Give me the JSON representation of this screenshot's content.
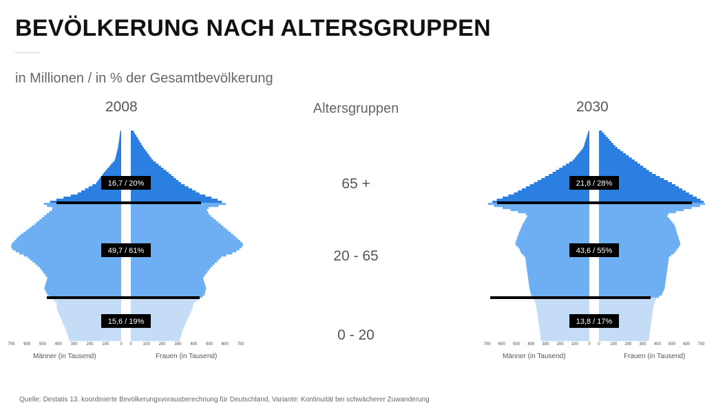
{
  "title": "BEVÖLKERUNG NACH ALTERSGRUPPEN",
  "subtitle": "in Millionen / in % der Gesamtbevölkerung",
  "center_header": "Altersgruppen",
  "source": "Quelle: Destatis 13. koordinierte Bevölkerungsvorausberechnung für Deutschland, Variante: Kontinuität bei schwächerer Zuwanderung",
  "colors": {
    "group_65_plus": "#2b7fe0",
    "group_20_65": "#6eaef2",
    "group_0_20": "#c4dcf5",
    "divider": "#000000",
    "label_bg": "#000000",
    "label_text": "#ffffff"
  },
  "chart_data": [
    {
      "type": "pyramid",
      "title": "2008",
      "unit_axis": "Tausend",
      "xlabel_left": "Männer (in Tausend)",
      "xlabel_right": "Frauen (in Tausend)",
      "xticks": [
        "700",
        "600",
        "500",
        "400",
        "300",
        "200",
        "100",
        "0",
        "0",
        "100",
        "200",
        "300",
        "400",
        "500",
        "600",
        "700"
      ],
      "xlim": [
        0,
        700
      ],
      "groups": [
        {
          "name": "65 +",
          "label": "16,7 / 20%",
          "millions": 16.7,
          "percent": 20
        },
        {
          "name": "20 - 65",
          "label": "49,7 / 61%",
          "millions": 49.7,
          "percent": 61
        },
        {
          "name": "0 - 20",
          "label": "15,6 / 19%",
          "millions": 15.6,
          "percent": 19
        }
      ],
      "profile": {
        "ages": [
          100,
          92,
          86,
          80,
          75,
          70,
          67,
          65,
          63,
          60,
          55,
          50,
          46,
          44,
          42,
          40,
          35,
          30,
          25,
          22,
          20,
          18,
          15,
          10,
          5,
          0
        ],
        "men": [
          5,
          20,
          40,
          110,
          160,
          280,
          420,
          500,
          430,
          480,
          560,
          650,
          700,
          700,
          660,
          600,
          520,
          470,
          490,
          470,
          440,
          410,
          410,
          380,
          350,
          330
        ],
        "women": [
          15,
          80,
          140,
          240,
          320,
          440,
          560,
          610,
          480,
          500,
          580,
          660,
          720,
          700,
          660,
          580,
          510,
          460,
          480,
          470,
          440,
          400,
          390,
          360,
          330,
          310
        ]
      }
    },
    {
      "type": "pyramid",
      "title": "2030",
      "unit_axis": "Tausend",
      "xlabel_left": "Männer (in Tausend)",
      "xlabel_right": "Frauen (in Tausend)",
      "xticks": [
        "700",
        "600",
        "500",
        "400",
        "300",
        "200",
        "100",
        "0",
        "0",
        "100",
        "200",
        "300",
        "400",
        "500",
        "600",
        "700"
      ],
      "xlim": [
        0,
        700
      ],
      "groups": [
        {
          "name": "65 +",
          "label": "21,8 / 28%",
          "millions": 21.8,
          "percent": 28
        },
        {
          "name": "20 - 65",
          "label": "43,6 / 55%",
          "millions": 43.6,
          "percent": 55
        },
        {
          "name": "0 - 20",
          "label": "13,8 / 17%",
          "millions": 13.8,
          "percent": 17
        }
      ],
      "profile": {
        "ages": [
          100,
          92,
          86,
          80,
          75,
          70,
          67,
          65,
          63,
          60,
          55,
          50,
          46,
          44,
          42,
          40,
          35,
          30,
          25,
          22,
          20,
          18,
          15,
          10,
          5,
          0
        ],
        "men": [
          5,
          40,
          110,
          250,
          380,
          520,
          640,
          700,
          580,
          420,
          460,
          490,
          510,
          480,
          470,
          440,
          430,
          420,
          410,
          400,
          380,
          370,
          360,
          350,
          340,
          330
        ],
        "women": [
          15,
          120,
          240,
          360,
          500,
          620,
          700,
          740,
          620,
          460,
          520,
          540,
          560,
          540,
          520,
          480,
          470,
          460,
          450,
          430,
          390,
          380,
          370,
          360,
          350,
          340
        ]
      }
    }
  ]
}
